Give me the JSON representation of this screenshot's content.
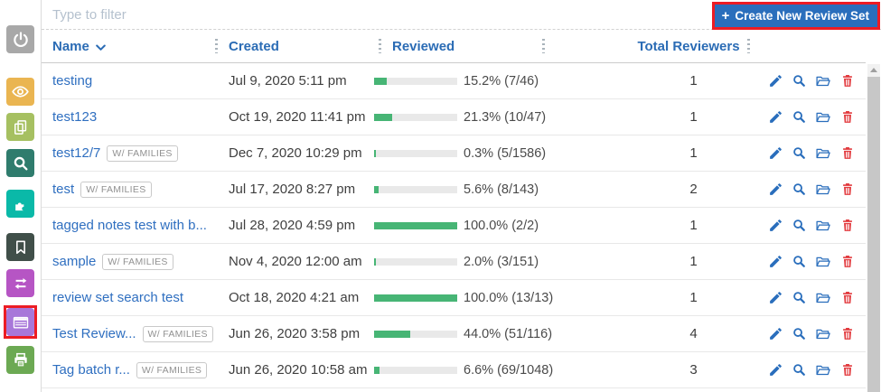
{
  "colors": {
    "accent_blue": "#2a6ebc",
    "link_blue": "#2f6fc0",
    "progress_fill": "#47b575",
    "progress_track": "#e9e9e9",
    "delete_red": "#e23b3f",
    "annotation_red": "#ec1c24"
  },
  "sidebar": {
    "items": [
      {
        "name": "power",
        "color": "#a8a8a8",
        "highlighted": false
      },
      {
        "name": "eye",
        "color": "#eab551",
        "highlighted": false
      },
      {
        "name": "copy-pages",
        "color": "#a6c061",
        "highlighted": false
      },
      {
        "name": "search",
        "color": "#2f7c6d",
        "highlighted": false
      },
      {
        "name": "puzzle",
        "color": "#0ab9a8",
        "highlighted": false
      },
      {
        "name": "bookmark",
        "color": "#404f49",
        "highlighted": false
      },
      {
        "name": "swap-arrows",
        "color": "#b655c4",
        "highlighted": false
      },
      {
        "name": "review-sets-list",
        "color": "#a877d9",
        "highlighted": true
      },
      {
        "name": "print",
        "color": "#6ca953",
        "highlighted": false
      }
    ]
  },
  "filter": {
    "placeholder": "Type to filter"
  },
  "create_button": {
    "plus": "+",
    "label": "Create New Review Set"
  },
  "table": {
    "headers": {
      "name": "Name",
      "created": "Created",
      "reviewed": "Reviewed",
      "total_reviewers": "Total Reviewers"
    },
    "badge_label": "W/ FAMILIES",
    "rows": [
      {
        "name": "testing",
        "families": false,
        "created": "Jul 9, 2020 5:11 pm",
        "pct": 15.2,
        "reviewed_label": "15.2% (7/46)",
        "reviewers": "1"
      },
      {
        "name": "test123",
        "families": false,
        "created": "Oct 19, 2020 11:41 pm",
        "pct": 21.3,
        "reviewed_label": "21.3% (10/47)",
        "reviewers": "1"
      },
      {
        "name": "test12/7",
        "families": true,
        "created": "Dec 7, 2020 10:29 pm",
        "pct": 0.3,
        "reviewed_label": "0.3% (5/1586)",
        "reviewers": "1"
      },
      {
        "name": "test",
        "families": true,
        "created": "Jul 17, 2020 8:27 pm",
        "pct": 5.6,
        "reviewed_label": "5.6% (8/143)",
        "reviewers": "2"
      },
      {
        "name": "tagged notes test with b...",
        "families": false,
        "created": "Jul 28, 2020 4:59 pm",
        "pct": 100,
        "reviewed_label": "100.0% (2/2)",
        "reviewers": "1"
      },
      {
        "name": "sample",
        "families": true,
        "created": "Nov 4, 2020 12:00 am",
        "pct": 2.0,
        "reviewed_label": "2.0% (3/151)",
        "reviewers": "1"
      },
      {
        "name": "review set search test",
        "families": false,
        "created": "Oct 18, 2020 4:21 am",
        "pct": 100,
        "reviewed_label": "100.0% (13/13)",
        "reviewers": "1"
      },
      {
        "name": "Test Review...",
        "families": true,
        "created": "Jun 26, 2020 3:58 pm",
        "pct": 44.0,
        "reviewed_label": "44.0% (51/116)",
        "reviewers": "4"
      },
      {
        "name": "Tag batch r...",
        "families": true,
        "created": "Jun 26, 2020 10:58 am",
        "pct": 6.6,
        "reviewed_label": "6.6% (69/1048)",
        "reviewers": "3"
      }
    ]
  }
}
